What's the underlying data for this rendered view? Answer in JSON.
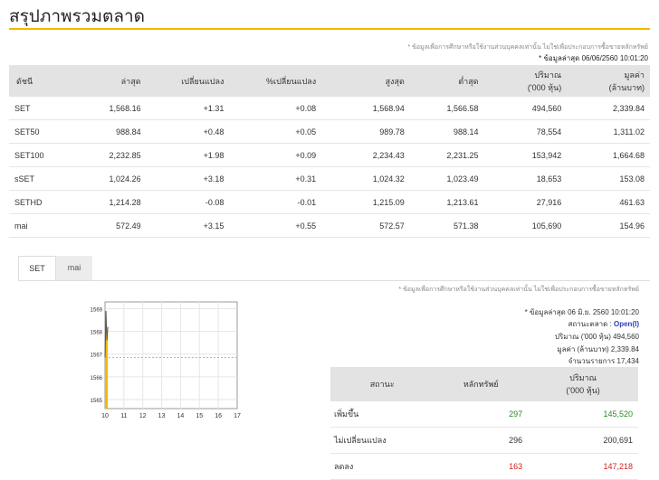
{
  "page": {
    "title": "สรุปภาพรวมตลาด",
    "disclaimer": "* ข้อมูลเพื่อการศึกษาหรือใช้งานส่วนบุคคลเท่านั้น ไม่ใช่เพื่อประกอบการซื้อขายหลักทรัพย์",
    "updated": "* ข้อมูลล่าสุด 06/06/2560 10:01:20"
  },
  "colors": {
    "accent": "#f5b800",
    "positive": "#2a8a2a",
    "negative": "#d02020",
    "link": "#3a6db5",
    "header_bg": "#e3e3e3"
  },
  "index_table": {
    "headers": [
      "ดัชนี",
      "ล่าสุด",
      "เปลี่ยนแปลง",
      "%เปลี่ยนแปลง",
      "สูงสุด",
      "ต่ำสุด",
      "ปริมาณ\n('000 หุ้น)",
      "มูลค่า\n(ล้านบาท)"
    ],
    "rows": [
      [
        "SET",
        "1,568.16",
        "+1.31",
        "+0.08",
        "1,568.94",
        "1,566.58",
        "494,560",
        "2,339.84"
      ],
      [
        "SET50",
        "988.84",
        "+0.48",
        "+0.05",
        "989.78",
        "988.14",
        "78,554",
        "1,311.02"
      ],
      [
        "SET100",
        "2,232.85",
        "+1.98",
        "+0.09",
        "2,234.43",
        "2,231.25",
        "153,942",
        "1,664.68"
      ],
      [
        "sSET",
        "1,024.26",
        "+3.18",
        "+0.31",
        "1,024.32",
        "1,023.49",
        "18,653",
        "153.08"
      ],
      [
        "SETHD",
        "1,214.28",
        "-0.08",
        "-0.01",
        "1,215.09",
        "1,213.61",
        "27,916",
        "461.63"
      ],
      [
        "mai",
        "572.49",
        "+3.15",
        "+0.55",
        "572.57",
        "571.38",
        "105,690",
        "154.96"
      ]
    ]
  },
  "tabs": [
    "SET",
    "mai"
  ],
  "detail": {
    "disclaimer": "* ข้อมูลเพื่อการศึกษาหรือใช้งานส่วนบุคคลเท่านั้น ไม่ใช่เพื่อประกอบการซื้อขายหลักทรัพย์",
    "updated": "* ข้อมูลล่าสุด 06 มิ.ย. 2560 10:01:20",
    "status_label": "สถานะตลาด :",
    "status_value": "Open(I)",
    "volume": "ปริมาณ ('000 หุ้น) 494,560",
    "value": "มูลค่า (ล้านบาท) 2,339.84",
    "deals": "จำนวนรายการ 17,434"
  },
  "summary_table": {
    "headers": [
      "สถานะ",
      "หลักทรัพย์",
      "ปริมาณ\n('000 หุ้น)"
    ],
    "rows": [
      [
        "เพิ่มขึ้น",
        "297",
        "145,520"
      ],
      [
        "ไม่เปลี่ยนแปลง",
        "296",
        "200,691"
      ],
      [
        "ลดลง",
        "163",
        "147,218"
      ]
    ]
  },
  "chart_data": {
    "type": "line",
    "x_ticks": [
      "10",
      "11",
      "12",
      "13",
      "14",
      "15",
      "16",
      "17"
    ],
    "y_ticks": [
      "1569",
      "1568",
      "1567",
      "1566",
      "1565"
    ],
    "ylim": [
      1564.6,
      1569.3
    ],
    "xlim": [
      10,
      17
    ],
    "reference_value": 1566.85,
    "series": [
      {
        "x": [
          10,
          10.05,
          10.1,
          10.15
        ],
        "y": [
          1566.85,
          1568.9,
          1567.6,
          1568.2
        ]
      }
    ]
  }
}
